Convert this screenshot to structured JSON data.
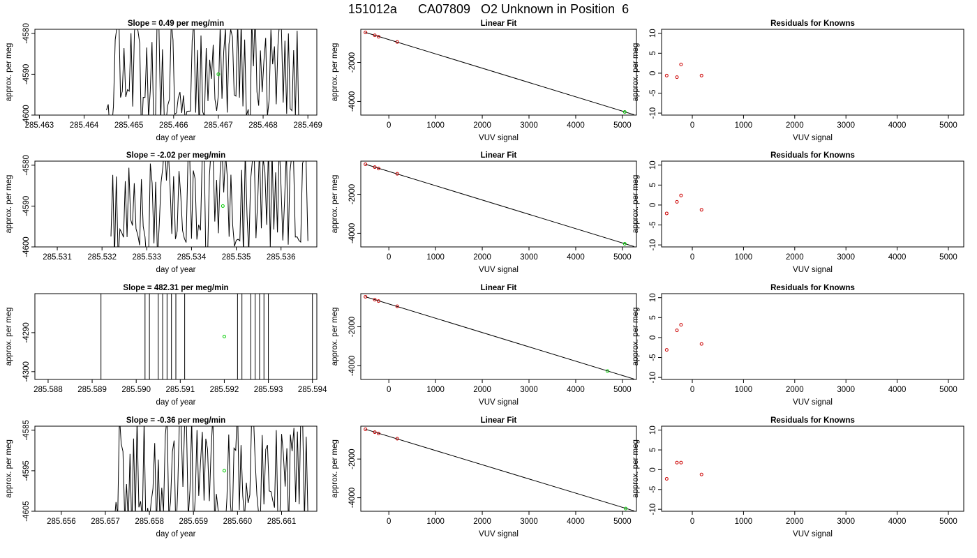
{
  "page": {
    "title": "151012a      CA07809   O2 Unknown in Position  6"
  },
  "panel_titles": {
    "slope_prefix": "Slope =  ",
    "slope_suffix": "  per meg/min",
    "fit": "Linear Fit",
    "residuals": "Residuals for Knowns"
  },
  "axis_labels": {
    "day_of_year": "day of year",
    "approx_per_meg": "approx. per meg",
    "vuv_signal": "VUV signal"
  },
  "colors": {
    "trace": "#000000",
    "unknown_point": "#00cc00",
    "known_point": "#cc0000",
    "fit_line": "#000000"
  },
  "chart_data": [
    {
      "row": 1,
      "type": "line",
      "title": "Slope =  0.49  per meg/min",
      "xlabel": "day of year",
      "ylabel": "approx. per meg",
      "xlim": [
        285.4629,
        285.4692
      ],
      "ylim": [
        -4600,
        -4579
      ],
      "x_ticks": [
        285.463,
        285.464,
        285.465,
        285.466,
        285.467,
        285.468,
        285.469
      ],
      "y_ticks": [
        -4600,
        -4590,
        -4580
      ],
      "trace": {
        "x_start": 285.4645,
        "x_end": 285.4688,
        "low": -4600,
        "high": -4580,
        "segments": 110,
        "seed": 11
      },
      "unknown_point": {
        "x": 285.467,
        "y": -4590
      }
    },
    {
      "row": 1,
      "type": "scatter",
      "title": "Linear Fit",
      "xlabel": "VUV signal",
      "ylabel": "approx. per meg",
      "xlim": [
        -600,
        5300
      ],
      "ylim": [
        -4700,
        -300
      ],
      "x_ticks": [
        0,
        1000,
        2000,
        3000,
        4000,
        5000
      ],
      "y_ticks": [
        -4000,
        -2000
      ],
      "fit_line": {
        "x": [
          -500,
          5250
        ],
        "y": [
          -460,
          -4680
        ]
      },
      "knowns": [
        {
          "x": -500,
          "y": -460
        },
        {
          "x": -300,
          "y": -610
        },
        {
          "x": -220,
          "y": -680
        },
        {
          "x": 180,
          "y": -950
        }
      ],
      "unknown_point": {
        "x": 5050,
        "y": -4540
      }
    },
    {
      "row": 1,
      "type": "scatter",
      "title": "Residuals for Knowns",
      "xlabel": "VUV signal",
      "ylabel": "approx. per meg",
      "xlim": [
        -600,
        5300
      ],
      "ylim": [
        -10.5,
        11
      ],
      "x_ticks": [
        0,
        1000,
        2000,
        3000,
        4000,
        5000
      ],
      "y_ticks": [
        -10,
        -5,
        0,
        5,
        10
      ],
      "knowns": [
        {
          "x": -500,
          "y": -0.6
        },
        {
          "x": -300,
          "y": -1.0
        },
        {
          "x": -220,
          "y": 2.2
        },
        {
          "x": 180,
          "y": -0.6
        }
      ]
    },
    {
      "row": 2,
      "type": "line",
      "title": "Slope =  -2.02  per meg/min",
      "xlabel": "day of year",
      "ylabel": "approx. per meg",
      "xlim": [
        285.5305,
        285.5368
      ],
      "ylim": [
        -4600,
        -4579
      ],
      "x_ticks": [
        285.531,
        285.532,
        285.533,
        285.534,
        285.535,
        285.536
      ],
      "y_ticks": [
        -4600,
        -4590,
        -4580
      ],
      "trace": {
        "x_start": 285.5322,
        "x_end": 285.5366,
        "low": -4600,
        "high": -4580,
        "segments": 110,
        "seed": 23
      },
      "unknown_point": {
        "x": 285.5347,
        "y": -4590
      }
    },
    {
      "row": 2,
      "type": "scatter",
      "title": "Linear Fit",
      "xlabel": "VUV signal",
      "ylabel": "approx. per meg",
      "xlim": [
        -600,
        5300
      ],
      "ylim": [
        -4700,
        -300
      ],
      "x_ticks": [
        0,
        1000,
        2000,
        3000,
        4000,
        5000
      ],
      "y_ticks": [
        -4000,
        -2000
      ],
      "fit_line": {
        "x": [
          -500,
          5250
        ],
        "y": [
          -460,
          -4680
        ]
      },
      "knowns": [
        {
          "x": -500,
          "y": -460
        },
        {
          "x": -300,
          "y": -610
        },
        {
          "x": -220,
          "y": -680
        },
        {
          "x": 180,
          "y": -950
        }
      ],
      "unknown_point": {
        "x": 5050,
        "y": -4540
      }
    },
    {
      "row": 2,
      "type": "scatter",
      "title": "Residuals for Knowns",
      "xlabel": "VUV signal",
      "ylabel": "approx. per meg",
      "xlim": [
        -600,
        5300
      ],
      "ylim": [
        -10.5,
        11
      ],
      "x_ticks": [
        0,
        1000,
        2000,
        3000,
        4000,
        5000
      ],
      "y_ticks": [
        -10,
        -5,
        0,
        5,
        10
      ],
      "knowns": [
        {
          "x": -500,
          "y": -2.1
        },
        {
          "x": -300,
          "y": 0.8
        },
        {
          "x": -220,
          "y": 2.4
        },
        {
          "x": 180,
          "y": -1.2
        }
      ]
    },
    {
      "row": 3,
      "type": "line",
      "title": "Slope =  482.31  per meg/min",
      "xlabel": "day of year",
      "ylabel": "approx. per meg",
      "xlim": [
        285.5877,
        285.5941
      ],
      "ylim": [
        -4302,
        -4280
      ],
      "x_ticks": [
        285.588,
        285.589,
        285.59,
        285.591,
        285.592,
        285.593,
        285.594
      ],
      "tick_text": [
        "285.588",
        "285.589",
        "285.590",
        "285.591",
        "285.592",
        "285.593",
        "285.594"
      ],
      "y_ticks": [
        -4300,
        -4290
      ],
      "spikes": [
        285.5892,
        285.5902,
        285.5903,
        285.5905,
        285.5906,
        285.5907,
        285.5908,
        285.5909,
        285.5911,
        285.5923,
        285.5924,
        285.5926,
        285.5927,
        285.5928,
        285.5929,
        285.593,
        285.594
      ],
      "unknown_point": {
        "x": 285.592,
        "y": -4291
      }
    },
    {
      "row": 3,
      "type": "scatter",
      "title": "Linear Fit",
      "xlabel": "VUV signal",
      "ylabel": "approx. per meg",
      "xlim": [
        -600,
        5300
      ],
      "ylim": [
        -4700,
        -300
      ],
      "x_ticks": [
        0,
        1000,
        2000,
        3000,
        4000,
        5000
      ],
      "y_ticks": [
        -4000,
        -2000
      ],
      "fit_line": {
        "x": [
          -500,
          5250
        ],
        "y": [
          -460,
          -4680
        ]
      },
      "knowns": [
        {
          "x": -500,
          "y": -460
        },
        {
          "x": -300,
          "y": -610
        },
        {
          "x": -220,
          "y": -680
        },
        {
          "x": 180,
          "y": -950
        }
      ],
      "unknown_point": {
        "x": 4680,
        "y": -4270
      }
    },
    {
      "row": 3,
      "type": "scatter",
      "title": "Residuals for Knowns",
      "xlabel": "VUV signal",
      "ylabel": "approx. per meg",
      "xlim": [
        -600,
        5300
      ],
      "ylim": [
        -10.5,
        11
      ],
      "x_ticks": [
        0,
        1000,
        2000,
        3000,
        4000,
        5000
      ],
      "y_ticks": [
        -10,
        -5,
        0,
        5,
        10
      ],
      "knowns": [
        {
          "x": -500,
          "y": -3.1
        },
        {
          "x": -300,
          "y": 1.8
        },
        {
          "x": -220,
          "y": 3.2
        },
        {
          "x": 180,
          "y": -1.6
        }
      ]
    },
    {
      "row": 4,
      "type": "line",
      "title": "Slope =  -0.36  per meg/min",
      "xlabel": "day of year",
      "ylabel": "approx. per meg",
      "xlim": [
        285.6554,
        285.6618
      ],
      "ylim": [
        -4605,
        -4584
      ],
      "x_ticks": [
        285.656,
        285.657,
        285.658,
        285.659,
        285.66,
        285.661
      ],
      "tick_text": [
        "285.656",
        "285.657",
        "285.658",
        "285.659",
        "285.660",
        "285.661"
      ],
      "y_ticks": [
        -4605,
        -4595,
        -4585
      ],
      "trace": {
        "x_start": 285.6572,
        "x_end": 285.6616,
        "low": -4605,
        "high": -4585,
        "segments": 110,
        "seed": 37
      },
      "unknown_point": {
        "x": 285.6597,
        "y": -4595
      }
    },
    {
      "row": 4,
      "type": "scatter",
      "title": "Linear Fit",
      "xlabel": "VUV signal",
      "ylabel": "approx. per meg",
      "xlim": [
        -600,
        5300
      ],
      "ylim": [
        -4700,
        -300
      ],
      "x_ticks": [
        0,
        1000,
        2000,
        3000,
        4000,
        5000
      ],
      "y_ticks": [
        -4000,
        -2000
      ],
      "fit_line": {
        "x": [
          -500,
          5250
        ],
        "y": [
          -460,
          -4680
        ]
      },
      "knowns": [
        {
          "x": -500,
          "y": -460
        },
        {
          "x": -300,
          "y": -610
        },
        {
          "x": -220,
          "y": -680
        },
        {
          "x": 180,
          "y": -950
        }
      ],
      "unknown_point": {
        "x": 5070,
        "y": -4560
      }
    },
    {
      "row": 4,
      "type": "scatter",
      "title": "Residuals for Knowns",
      "xlabel": "VUV signal",
      "ylabel": "approx. per meg",
      "xlim": [
        -600,
        5300
      ],
      "ylim": [
        -10.5,
        11
      ],
      "x_ticks": [
        0,
        1000,
        2000,
        3000,
        4000,
        5000
      ],
      "y_ticks": [
        -10,
        -5,
        0,
        5,
        10
      ],
      "knowns": [
        {
          "x": -500,
          "y": -2.3
        },
        {
          "x": -300,
          "y": 1.8
        },
        {
          "x": -220,
          "y": 1.8
        },
        {
          "x": 180,
          "y": -1.2
        }
      ]
    }
  ]
}
